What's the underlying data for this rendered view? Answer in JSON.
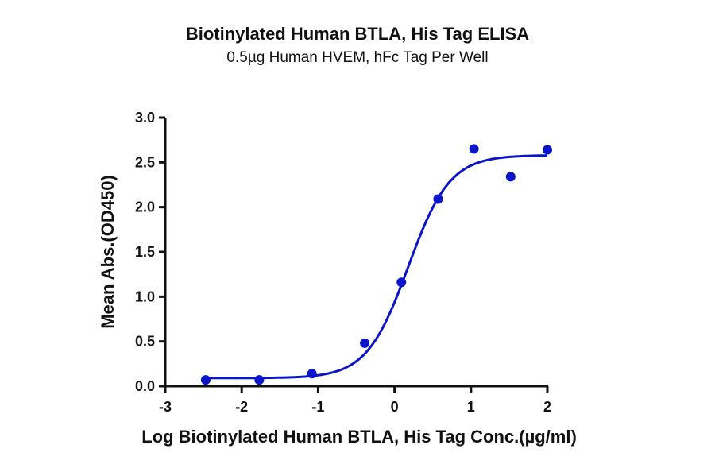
{
  "chart_data": {
    "type": "scatter",
    "title": "Biotinylated Human BTLA, His Tag ELISA",
    "subtitle": "0.5µg Human HVEM, hFc Tag Per Well",
    "xlabel": "Log Biotinylated Human BTLA, His Tag Conc.(µg/ml)",
    "ylabel": "Mean Abs.(OD450)",
    "xlim": [
      -3,
      2
    ],
    "ylim": [
      0,
      3.0
    ],
    "x_ticks": [
      "-3",
      "-2",
      "-1",
      "0",
      "1",
      "2"
    ],
    "y_ticks": [
      "0.0",
      "0.5",
      "1.0",
      "1.5",
      "2.0",
      "2.5",
      "3.0"
    ],
    "grid": false,
    "legend": null,
    "series": [
      {
        "name": "Mean Abs.(OD450)",
        "color": "#0a14c8",
        "x": [
          -2.47,
          -1.77,
          -1.08,
          -0.39,
          0.09,
          0.57,
          1.04,
          1.52,
          2.0
        ],
        "y": [
          0.07,
          0.07,
          0.14,
          0.48,
          1.16,
          2.09,
          2.65,
          2.34,
          2.64
        ]
      }
    ],
    "fit_curve": {
      "type": "4PL",
      "bottom": 0.09,
      "top": 2.58,
      "log_ec50": 0.18,
      "hill_slope": 1.6,
      "x_range": [
        -2.47,
        2.0
      ],
      "color": "#0a14c8"
    }
  }
}
